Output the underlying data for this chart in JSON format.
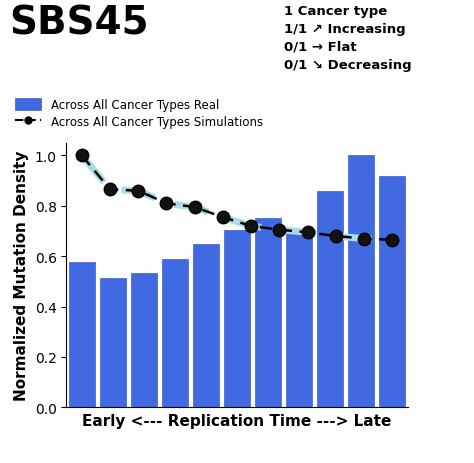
{
  "title": "SBS45",
  "bar_values": [
    0.575,
    0.513,
    0.533,
    0.59,
    0.648,
    0.705,
    0.75,
    0.693,
    0.86,
    1.0,
    0.92
  ],
  "line_values": [
    1.0,
    0.865,
    0.86,
    0.81,
    0.795,
    0.755,
    0.72,
    0.705,
    0.695,
    0.68,
    0.67,
    0.665
  ],
  "bar_color": "#4169E1",
  "bar_edgecolor": "#3a5fcc",
  "line_color": "#000000",
  "line_bg_color": "#a8dde8",
  "ylabel": "Normalized Mutation Density",
  "xlabel": "Early <--- Replication Time ---> Late",
  "ylim": [
    0.0,
    1.05
  ],
  "yticks": [
    0.0,
    0.2,
    0.4,
    0.6,
    0.8,
    1.0
  ],
  "legend_bar_label": "Across All Cancer Types Real",
  "legend_line_label": "Across All Cancer Types Simulations",
  "info_text": "1 Cancer type\n1/1 ↗ Increasing\n0/1 → Flat\n0/1 ↘ Decreasing",
  "title_fontsize": 28,
  "axis_fontsize": 11,
  "ylabel_fontsize": 11,
  "info_fontsize": 9.5,
  "legend_fontsize": 8.5,
  "tick_fontsize": 10
}
